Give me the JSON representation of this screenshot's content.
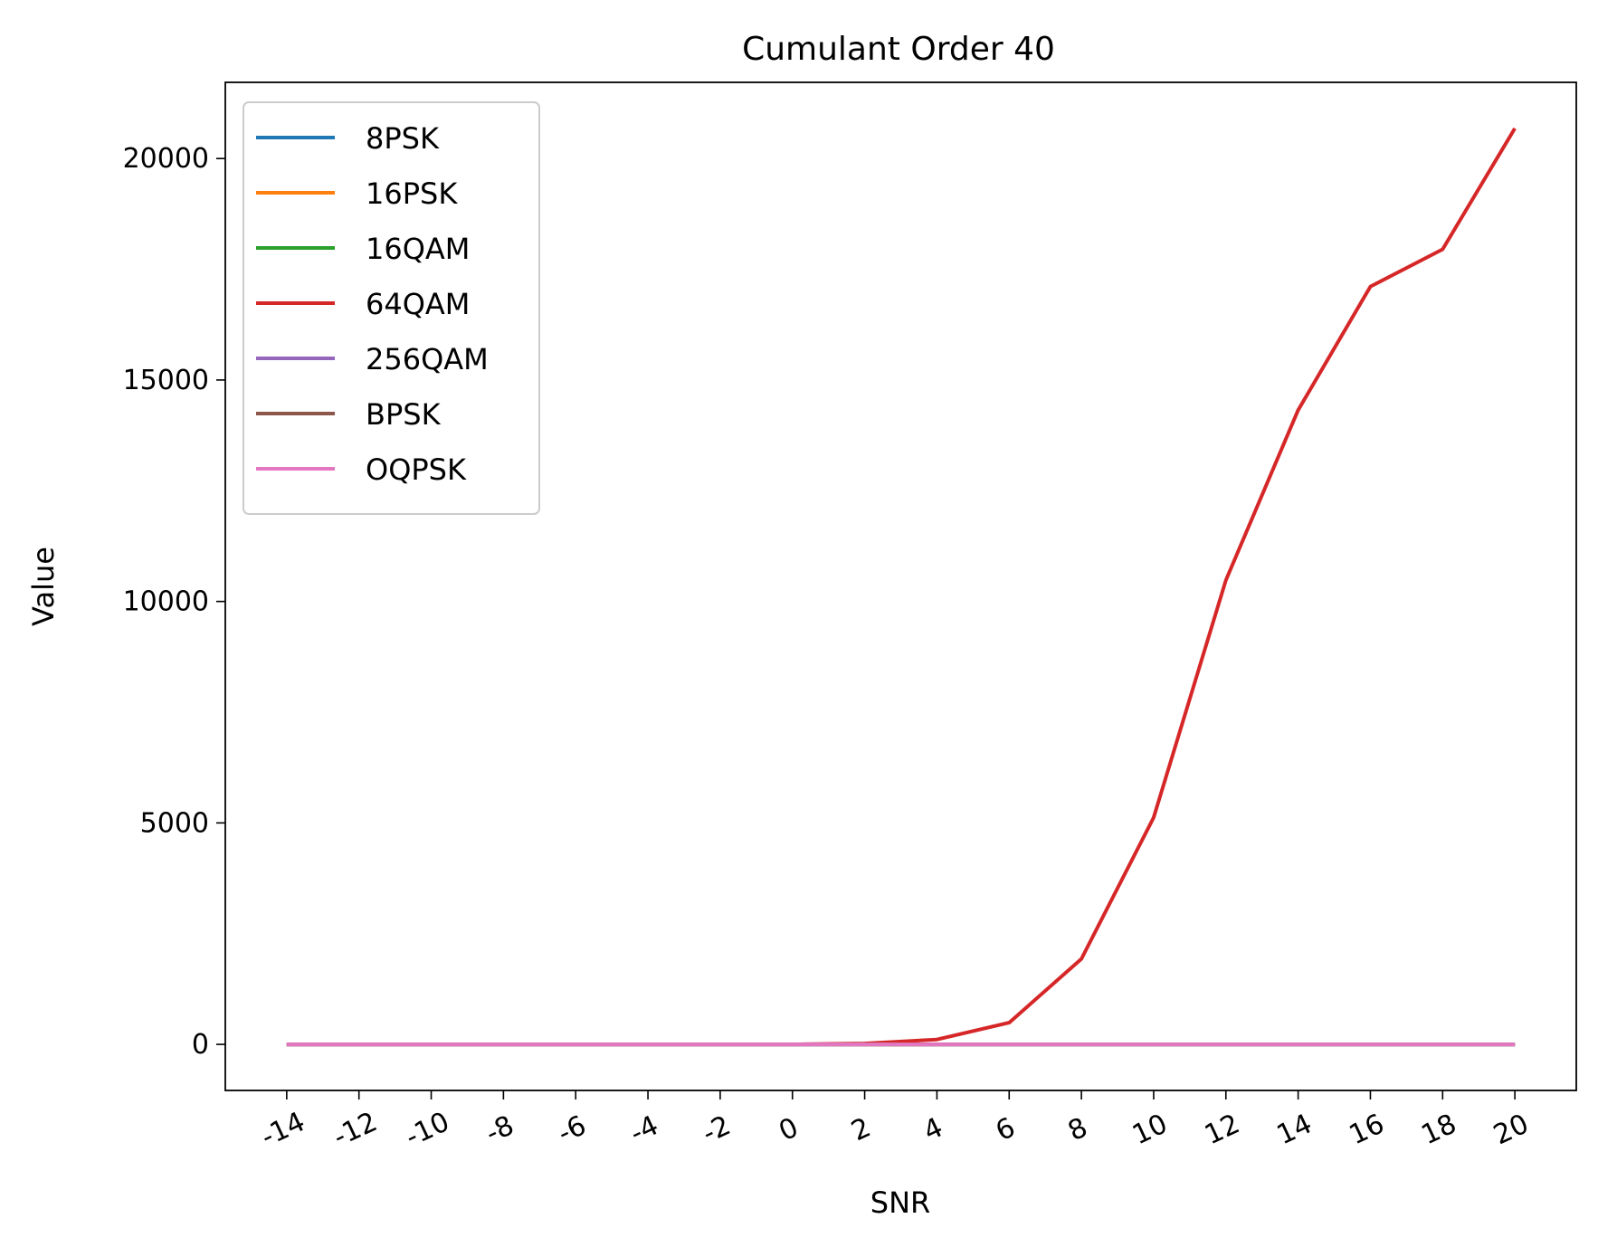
{
  "chart_data": {
    "type": "line",
    "title": "Cumulant Order 40",
    "xlabel": "SNR",
    "ylabel": "Value",
    "x": [
      -14,
      -12,
      -10,
      -8,
      -6,
      -4,
      -2,
      0,
      2,
      4,
      6,
      8,
      10,
      12,
      14,
      16,
      18,
      20
    ],
    "x_tick_labels": [
      "-14",
      "-12",
      "-10",
      "-8",
      "-6",
      "-4",
      "-2",
      "0",
      "2",
      "4",
      "6",
      "8",
      "10",
      "12",
      "14",
      "16",
      "18",
      "20"
    ],
    "y_ticks": [
      0,
      5000,
      10000,
      15000,
      20000
    ],
    "y_tick_labels": [
      "0",
      "5000",
      "10000",
      "15000",
      "20000"
    ],
    "xlim": [
      -15.7,
      21.7
    ],
    "ylim": [
      -1040,
      21720
    ],
    "legend_position": "upper-left",
    "grid": false,
    "series": [
      {
        "name": "8PSK",
        "color": "#1f77b4",
        "values": [
          0,
          0,
          0,
          0,
          0,
          0,
          0,
          0,
          0,
          0,
          0,
          0,
          0,
          0,
          0,
          0,
          0,
          0
        ]
      },
      {
        "name": "16PSK",
        "color": "#ff7f0e",
        "values": [
          0,
          0,
          0,
          0,
          0,
          0,
          0,
          0,
          0,
          0,
          0,
          0,
          0,
          0,
          0,
          0,
          0,
          0
        ]
      },
      {
        "name": "16QAM",
        "color": "#2ca02c",
        "values": [
          0,
          0,
          0,
          0,
          0,
          0,
          0,
          0,
          0,
          0,
          0,
          0,
          0,
          0,
          0,
          0,
          0,
          0
        ]
      },
      {
        "name": "64QAM",
        "color": "#d62728",
        "values": [
          0,
          0,
          0,
          0,
          0,
          0,
          0,
          0,
          20,
          110,
          490,
          1930,
          5120,
          10480,
          14320,
          17110,
          17950,
          20680
        ]
      },
      {
        "name": "256QAM",
        "color": "#9467bd",
        "values": [
          0,
          0,
          0,
          0,
          0,
          0,
          0,
          0,
          0,
          0,
          0,
          0,
          0,
          0,
          0,
          0,
          0,
          0
        ]
      },
      {
        "name": "BPSK",
        "color": "#8c564b",
        "values": [
          0,
          0,
          0,
          0,
          0,
          0,
          0,
          0,
          0,
          0,
          0,
          0,
          0,
          0,
          0,
          0,
          0,
          0
        ]
      },
      {
        "name": "OQPSK",
        "color": "#e377c2",
        "values": [
          0,
          0,
          0,
          0,
          0,
          0,
          0,
          0,
          0,
          0,
          0,
          0,
          0,
          0,
          0,
          0,
          0,
          0
        ]
      }
    ]
  }
}
